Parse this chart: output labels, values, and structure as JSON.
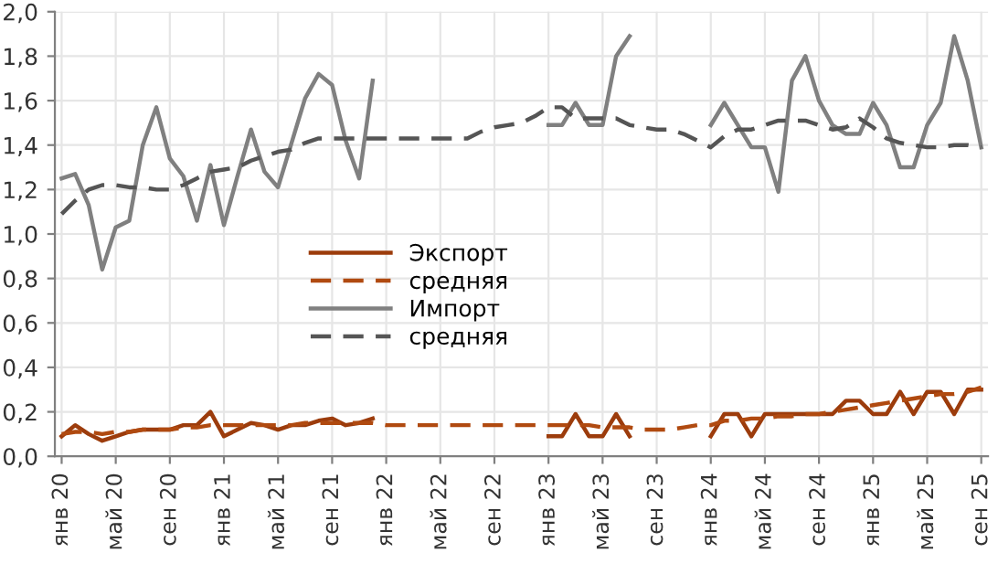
{
  "chart_data": {
    "type": "line",
    "categories": [
      "янв 20",
      null,
      null,
      null,
      "май 20",
      null,
      null,
      null,
      "сен 20",
      null,
      null,
      null,
      "янв 21",
      null,
      null,
      null,
      "май 21",
      null,
      null,
      null,
      "сен 21",
      null,
      null,
      null,
      "янв 22",
      null,
      null,
      null,
      "май 22",
      null,
      null,
      null,
      "сен 22",
      null,
      null,
      null,
      "янв 23",
      null,
      null,
      null,
      "май 23",
      null,
      null,
      null,
      "сен 23",
      null,
      null,
      null,
      "янв 24",
      null,
      null,
      null,
      "май 24",
      null,
      null,
      null,
      "сен 24",
      null,
      null,
      null,
      "янв 25",
      null,
      null,
      null,
      "май 25",
      null,
      null,
      null,
      "сен 25"
    ],
    "series": [
      {
        "name": "Экспорт",
        "color": "#9c3c0c",
        "line_style": "solid",
        "values": [
          0.09,
          0.14,
          0.1,
          0.07,
          0.09,
          0.11,
          0.12,
          0.12,
          0.12,
          0.14,
          0.14,
          0.2,
          0.09,
          0.12,
          0.15,
          0.14,
          0.12,
          0.14,
          0.14,
          0.16,
          0.17,
          0.14,
          0.15,
          0.17,
          null,
          null,
          null,
          null,
          null,
          null,
          null,
          null,
          null,
          null,
          null,
          null,
          0.09,
          0.09,
          0.19,
          0.09,
          0.09,
          0.19,
          0.09,
          null,
          null,
          null,
          null,
          null,
          0.09,
          0.19,
          0.19,
          0.09,
          0.19,
          0.19,
          0.19,
          0.19,
          0.19,
          0.19,
          0.25,
          0.25,
          0.19,
          0.19,
          0.29,
          0.19,
          0.29,
          0.29,
          0.19,
          0.3,
          0.3
        ]
      },
      {
        "name": "средняя",
        "color": "#b04a10",
        "line_style": "dashed",
        "values": [
          0.1,
          0.11,
          0.11,
          0.1,
          0.11,
          0.11,
          0.12,
          0.12,
          0.12,
          0.13,
          0.13,
          0.14,
          0.14,
          0.14,
          0.14,
          0.14,
          0.14,
          0.14,
          0.15,
          0.15,
          0.15,
          0.15,
          0.15,
          0.15,
          0.14,
          0.14,
          0.14,
          0.14,
          0.14,
          0.14,
          0.14,
          0.14,
          0.14,
          0.14,
          0.14,
          0.14,
          0.14,
          0.14,
          0.14,
          0.14,
          0.13,
          0.13,
          0.13,
          0.12,
          0.12,
          0.12,
          0.13,
          0.14,
          0.14,
          0.16,
          0.16,
          0.17,
          0.17,
          0.18,
          0.18,
          0.19,
          0.19,
          0.2,
          0.21,
          0.22,
          0.23,
          0.24,
          0.25,
          0.26,
          0.27,
          0.28,
          0.28,
          0.29,
          0.31
        ]
      },
      {
        "name": "Импорт",
        "color": "#808080",
        "line_style": "solid",
        "values": [
          1.25,
          1.27,
          1.13,
          0.84,
          1.03,
          1.06,
          1.4,
          1.57,
          1.34,
          1.26,
          1.06,
          1.31,
          1.04,
          1.26,
          1.47,
          1.28,
          1.21,
          1.41,
          1.61,
          1.72,
          1.67,
          1.42,
          1.25,
          1.69,
          null,
          null,
          null,
          null,
          null,
          null,
          null,
          null,
          null,
          null,
          null,
          null,
          1.49,
          1.49,
          1.59,
          1.49,
          1.49,
          1.8,
          1.89,
          null,
          null,
          null,
          null,
          null,
          1.49,
          1.59,
          1.49,
          1.39,
          1.39,
          1.19,
          1.69,
          1.8,
          1.6,
          1.49,
          1.45,
          1.45,
          1.59,
          1.49,
          1.3,
          1.3,
          1.49,
          1.59,
          1.89,
          1.69,
          1.39
        ]
      },
      {
        "name": "средняя",
        "color": "#555555",
        "line_style": "dashed",
        "values": [
          1.09,
          1.15,
          1.2,
          1.22,
          1.22,
          1.21,
          1.21,
          1.2,
          1.2,
          1.22,
          1.25,
          1.28,
          1.29,
          1.3,
          1.33,
          1.35,
          1.37,
          1.38,
          1.41,
          1.43,
          1.43,
          1.43,
          1.43,
          1.43,
          1.43,
          1.43,
          1.43,
          1.43,
          1.43,
          1.43,
          1.43,
          1.46,
          1.48,
          1.49,
          1.5,
          1.53,
          1.57,
          1.57,
          1.52,
          1.52,
          1.52,
          1.52,
          1.49,
          1.48,
          1.47,
          1.47,
          1.45,
          1.42,
          1.39,
          1.44,
          1.47,
          1.47,
          1.49,
          1.51,
          1.51,
          1.51,
          1.49,
          1.47,
          1.48,
          1.52,
          1.48,
          1.43,
          1.41,
          1.4,
          1.39,
          1.39,
          1.4,
          1.4,
          1.39
        ]
      }
    ],
    "ylim": [
      0,
      2.0
    ],
    "yticks": [
      {
        "value": 0,
        "label": "0,0"
      },
      {
        "value": 0.2,
        "label": "0,2"
      },
      {
        "value": 0.4,
        "label": "0,4"
      },
      {
        "value": 0.6,
        "label": "0,6"
      },
      {
        "value": 0.8,
        "label": "0,8"
      },
      {
        "value": 1.0,
        "label": "1,0"
      },
      {
        "value": 1.2,
        "label": "1,2"
      },
      {
        "value": 1.4,
        "label": "1,4"
      },
      {
        "value": 1.6,
        "label": "1,6"
      },
      {
        "value": 1.8,
        "label": "1,8"
      },
      {
        "value": 2.0,
        "label": "2,0"
      }
    ],
    "grid": true,
    "legend": "center"
  }
}
